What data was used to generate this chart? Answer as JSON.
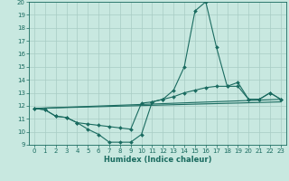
{
  "title": "",
  "xlabel": "Humidex (Indice chaleur)",
  "ylabel": "",
  "xlim": [
    -0.5,
    23.5
  ],
  "ylim": [
    9,
    20
  ],
  "yticks": [
    9,
    10,
    11,
    12,
    13,
    14,
    15,
    16,
    17,
    18,
    19,
    20
  ],
  "xticks": [
    0,
    1,
    2,
    3,
    4,
    5,
    6,
    7,
    8,
    9,
    10,
    11,
    12,
    13,
    14,
    15,
    16,
    17,
    18,
    19,
    20,
    21,
    22,
    23
  ],
  "background_color": "#c8e8e0",
  "grid_color": "#a8ccc4",
  "line_color": "#1a6b60",
  "lines": [
    {
      "x": [
        0,
        1,
        2,
        3,
        4,
        5,
        6,
        7,
        8,
        9,
        10,
        11,
        12,
        13,
        14,
        15,
        16,
        17,
        18,
        19,
        20,
        21,
        22,
        23
      ],
      "y": [
        11.8,
        11.7,
        11.2,
        11.1,
        10.7,
        10.2,
        9.8,
        9.2,
        9.2,
        9.2,
        9.8,
        12.3,
        12.5,
        13.2,
        15.0,
        19.3,
        20.0,
        16.5,
        13.5,
        13.8,
        12.5,
        12.5,
        13.0,
        12.5
      ],
      "marker": true
    },
    {
      "x": [
        0,
        1,
        2,
        3,
        4,
        5,
        6,
        7,
        8,
        9,
        10,
        11,
        12,
        13,
        14,
        15,
        16,
        17,
        18,
        19,
        20,
        21,
        22,
        23
      ],
      "y": [
        11.8,
        11.7,
        11.2,
        11.1,
        10.7,
        10.6,
        10.5,
        10.4,
        10.3,
        10.2,
        12.2,
        12.3,
        12.5,
        12.7,
        13.0,
        13.2,
        13.4,
        13.5,
        13.5,
        13.5,
        12.5,
        12.5,
        13.0,
        12.5
      ],
      "marker": true
    },
    {
      "x": [
        0,
        23
      ],
      "y": [
        11.8,
        12.5
      ],
      "marker": false
    },
    {
      "x": [
        0,
        23
      ],
      "y": [
        11.8,
        12.3
      ],
      "marker": false
    }
  ],
  "tick_fontsize": 5.0,
  "xlabel_fontsize": 6.0,
  "linewidth": 0.8,
  "markersize": 2.0
}
